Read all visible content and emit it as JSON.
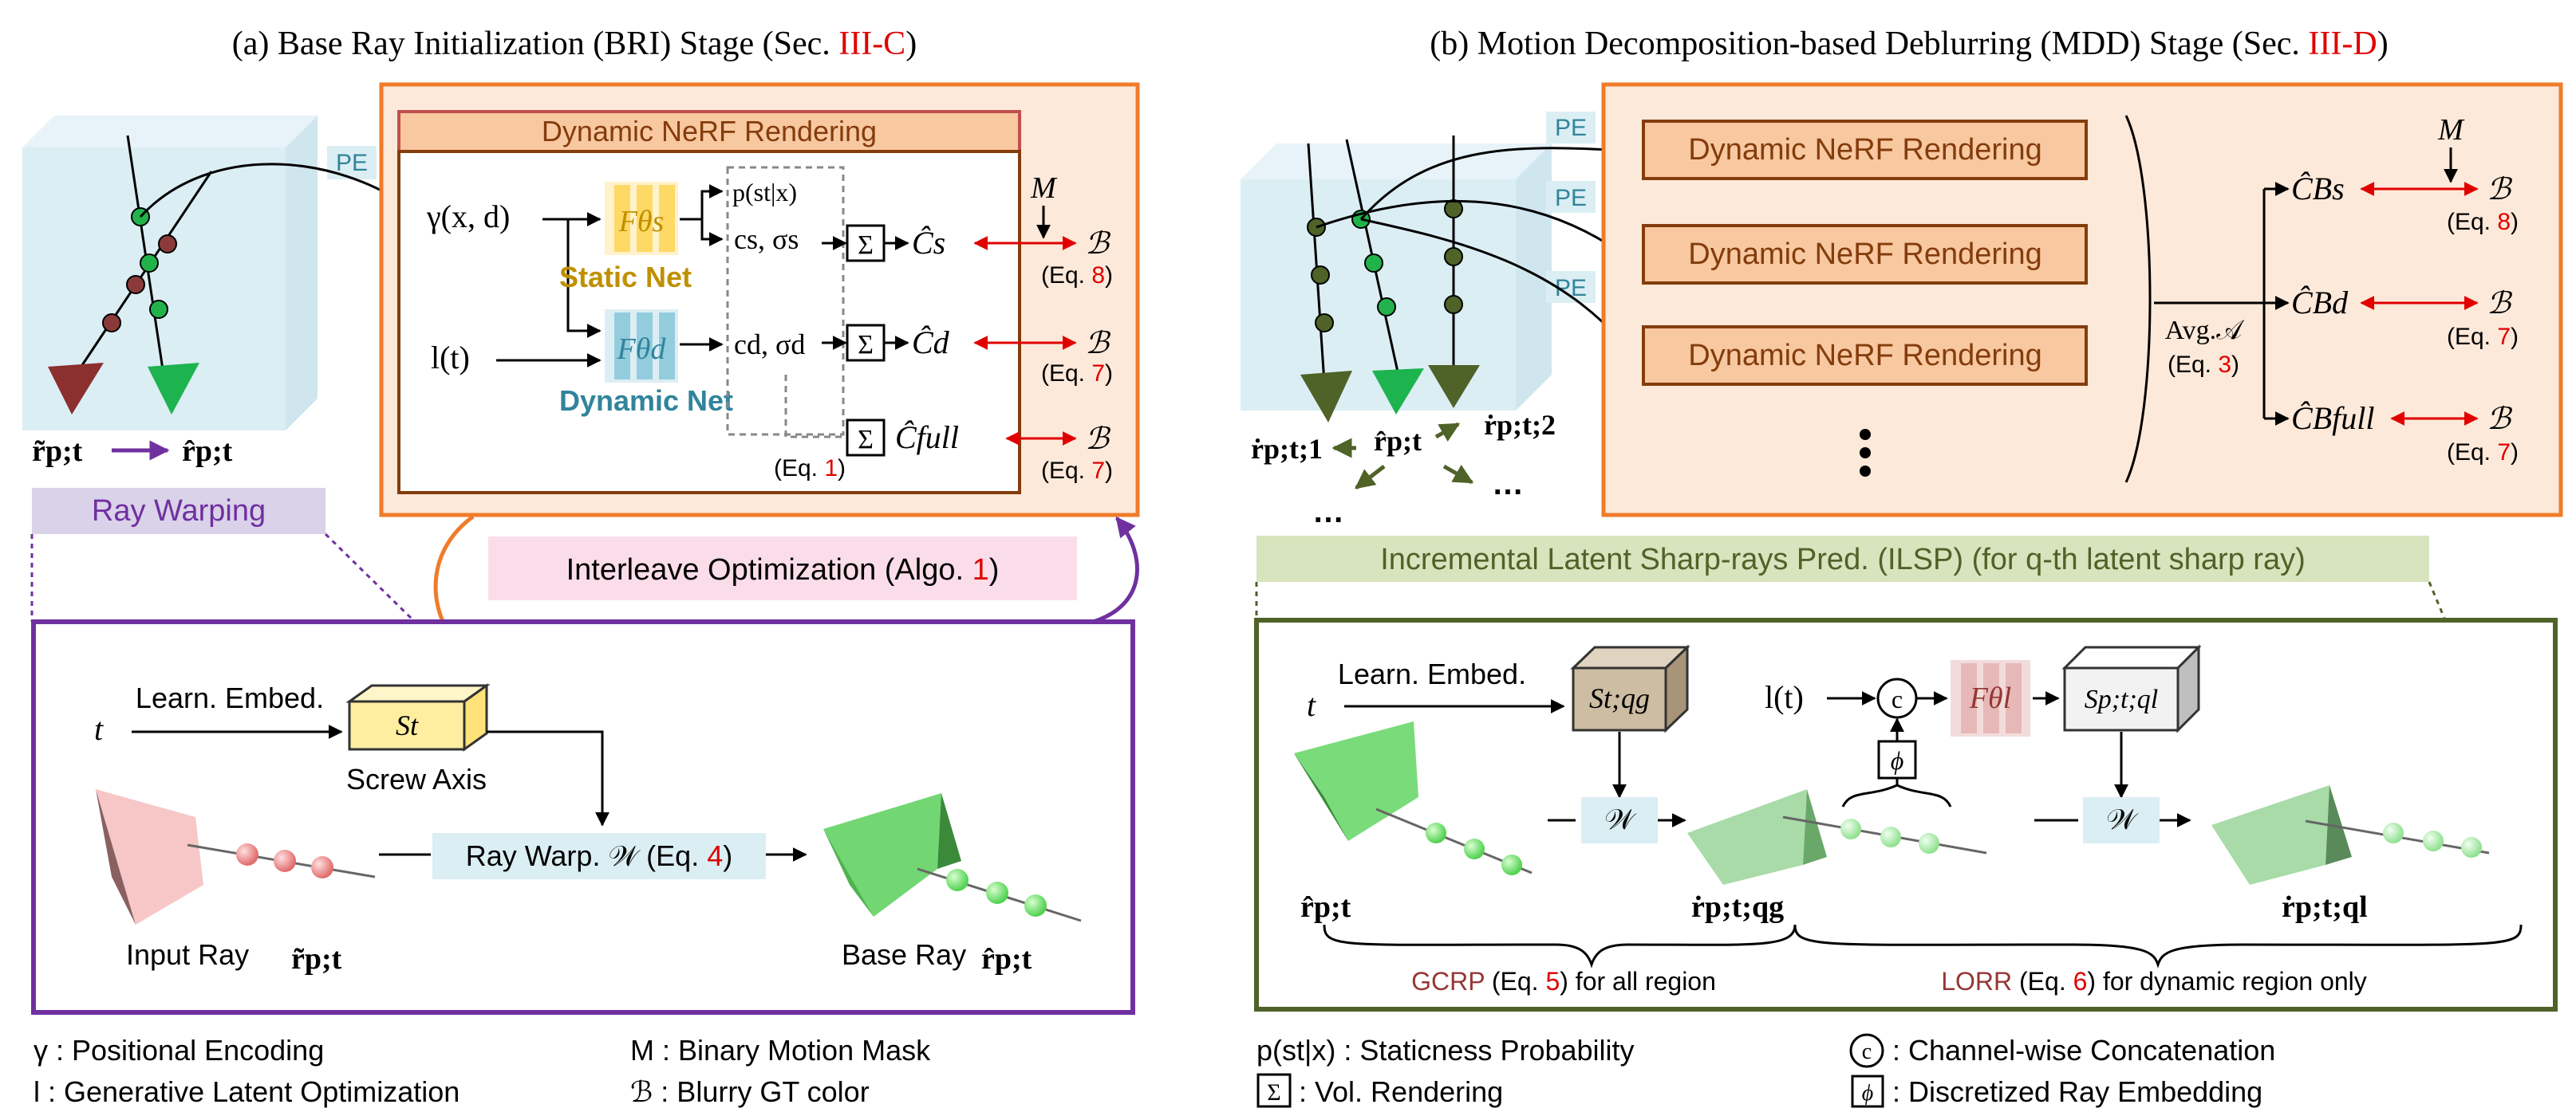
{
  "bri": {
    "title_prefix": "(a) Base Ray Initialization (BRI) Stage (Sec. ",
    "title_ref": "III-C",
    "title_suffix": ")",
    "render_header": "Dynamic NeRF Rendering",
    "pe": "PE",
    "gamma_input": "γ(x, d)",
    "l_input": "l(t)",
    "static_fn": "Fθs",
    "dynamic_fn": "Fθd",
    "static_net": "Static Net",
    "dynamic_net": "Dynamic Net",
    "prob": "p(st|x)",
    "cs": "cs, σs",
    "cd": "cd, σd",
    "sigma": "Σ",
    "c_s_hat": "Ĉs",
    "c_d_hat": "Ĉd",
    "c_full_hat": "Ĉfull",
    "blur": "ℬ",
    "M": "M",
    "eq8": "(Eq. 8)",
    "eq7a": "(Eq. 7)",
    "eq7b": "(Eq. 7)",
    "eq1": "(Eq. 1)",
    "ray_tilde": "r̃p;t",
    "ray_hat": "r̂p;t",
    "ray_warping": "Ray Warping",
    "interleave": "Interleave Optimization (Algo. 1)",
    "t": "t",
    "learn_embed": "Learn. Embed.",
    "screw_sym": "St",
    "screw_axis": "Screw Axis",
    "ray_warp": "Ray Warp. 𝒲  (Eq. 4)",
    "input_ray": "Input Ray",
    "input_ray_sym": "r̃p;t",
    "base_ray": "Base Ray",
    "base_ray_sym": "r̂p;t"
  },
  "mdd": {
    "title_prefix": "(b) Motion Decomposition-based Deblurring (MDD) Stage (Sec. ",
    "title_ref": "III-D",
    "title_suffix": ")",
    "pe": "PE",
    "render_boxes": [
      "Dynamic NeRF Rendering",
      "Dynamic NeRF Rendering",
      "Dynamic NeRF Rendering"
    ],
    "avg": "Avg.𝒜",
    "eq3": "(Eq. 3)",
    "cb_s": "ĈBs",
    "cb_d": "ĈBd",
    "cb_full": "ĈBfull",
    "blur": "ℬ",
    "M": "M",
    "eq8": "(Eq. 8)",
    "eq7a": "(Eq. 7)",
    "eq7b": "(Eq. 7)",
    "r1": "ṙp;t;1",
    "r_hat": "r̂p;t",
    "r2": "ṙp;t;2",
    "dots": "…",
    "ilsp": "Incremental Latent Sharp-rays Pred. (ILSP) (for q-th latent sharp ray)",
    "t": "t",
    "learn_embed": "Learn. Embed.",
    "s_g": "St;qg",
    "lt": "l(t)",
    "c_circle": "c",
    "f_l": "Fθl",
    "s_l": "Sp;t;ql",
    "W1": "𝒲",
    "W2": "𝒲",
    "phi": "ϕ",
    "r_hat2": "r̂p;t",
    "r_g": "ṙp;t;qg",
    "r_l": "ṙp;t;ql",
    "gcrp": "GCRP",
    "gcrp_eq": " (Eq. 5) for all region",
    "gcrp_num": "5",
    "lorr": "LORR",
    "lorr_eq": " (Eq. 6) for dynamic region only"
  },
  "legend": {
    "gamma": "γ : Positional Encoding",
    "l": "l  : Generative Latent Optimization",
    "M": "M : Binary Motion Mask",
    "B": "ℬ : Blurry GT color",
    "p": "p(st|x) : Staticness Probability",
    "sigma": ": Vol. Rendering",
    "c": ": Channel-wise Concatenation",
    "phi": ": Discretized Ray Embedding"
  },
  "colors": {
    "orange_border": "#f07b2a",
    "orange_fill": "#fde9d9",
    "orange_box": "#f8c8a0",
    "purple": "#7030a0",
    "lavender": "#d9d2e9",
    "pink": "#fbdde9",
    "light_blue": "#dbeef4",
    "static_yellow": "#ffe699",
    "static_text": "#c09000",
    "dynamic_blue": "#9ed8e8",
    "dynamic_text": "#31849b",
    "red": "#e00000",
    "green_border": "#4f6228",
    "green_label": "#d7e4bd"
  }
}
